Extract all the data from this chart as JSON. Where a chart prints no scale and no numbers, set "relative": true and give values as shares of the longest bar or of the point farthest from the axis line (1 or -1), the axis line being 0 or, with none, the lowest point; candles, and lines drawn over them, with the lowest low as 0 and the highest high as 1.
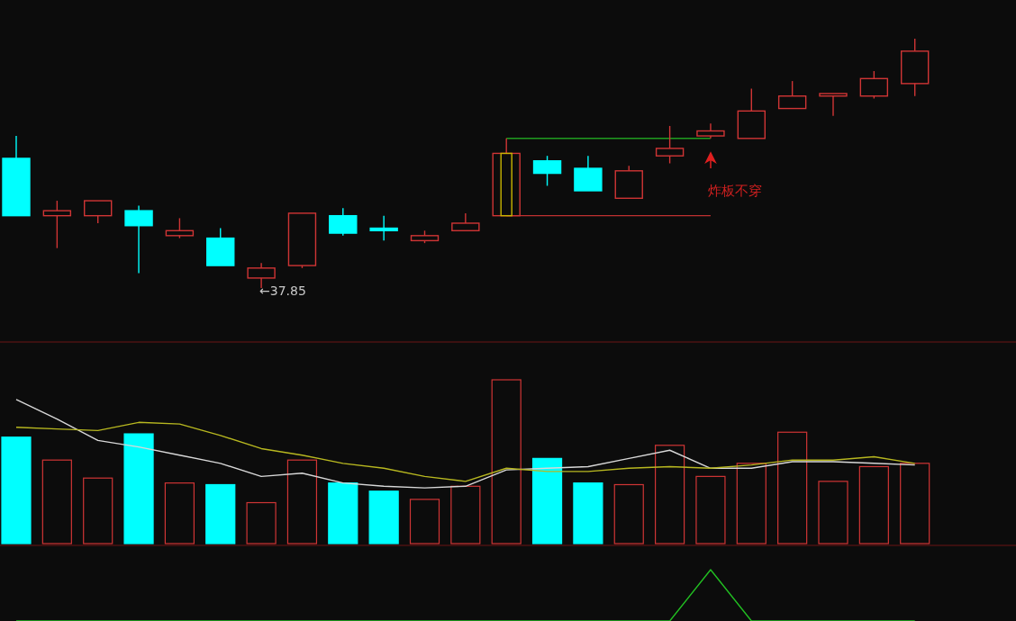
{
  "chart_data": [
    {
      "type": "candlestick",
      "relative": true,
      "categories": [
        null,
        null,
        null,
        null,
        null,
        null,
        null,
        null,
        null,
        null,
        null,
        null,
        null,
        null,
        null,
        null,
        null,
        null,
        null,
        null,
        null,
        null,
        null
      ],
      "ohlc": [
        [
          0.52,
          0.61,
          0.29,
          0.29
        ],
        [
          0.29,
          0.35,
          0.16,
          0.31
        ],
        [
          0.29,
          0.35,
          0.26,
          0.35
        ],
        [
          0.31,
          0.33,
          0.06,
          0.25
        ],
        [
          0.21,
          0.28,
          0.2,
          0.23
        ],
        [
          0.2,
          0.24,
          0.09,
          0.09
        ],
        [
          0.04,
          0.1,
          0,
          0.08
        ],
        [
          0.09,
          0.3,
          0.08,
          0.3
        ],
        [
          0.29,
          0.32,
          0.21,
          0.22
        ],
        [
          0.24,
          0.29,
          0.19,
          0.23
        ],
        [
          0.19,
          0.23,
          0.18,
          0.21
        ],
        [
          0.23,
          0.3,
          0.23,
          0.26
        ],
        [
          0.29,
          0.6,
          0.29,
          0.54
        ],
        [
          0.51,
          0.53,
          0.41,
          0.46
        ],
        [
          0.48,
          0.53,
          0.39,
          0.39
        ],
        [
          0.36,
          0.49,
          0.36,
          0.47
        ],
        [
          0.53,
          0.65,
          0.5,
          0.56
        ],
        [
          0.61,
          0.66,
          0.6,
          0.63
        ],
        [
          0.6,
          0.8,
          0.6,
          0.71
        ],
        [
          0.72,
          0.83,
          0.72,
          0.77
        ],
        [
          0.77,
          0.78,
          0.69,
          0.78
        ],
        [
          0.77,
          0.87,
          0.76,
          0.84
        ],
        [
          0.82,
          1,
          0.77,
          0.95
        ]
      ],
      "colors": [
        "#00ffff",
        "#d03535",
        "#d03535",
        "#00ffff",
        "#d03535",
        "#00ffff",
        "#d03535",
        "#d03535",
        "#00ffff",
        "#00ffff",
        "#d03535",
        "#d03535",
        "#d03535",
        "#00ffff",
        "#00ffff",
        "#d03535",
        "#d03535",
        "#d03535",
        "#d03535",
        "#d03535",
        "#d03535",
        "#d03535",
        "#d03535"
      ],
      "series": [
        {
          "type": "line",
          "color": "#1f9d1f",
          "values": [
            null,
            null,
            null,
            null,
            null,
            null,
            null,
            null,
            null,
            null,
            null,
            null,
            0.6,
            0.6,
            0.6,
            0.6,
            0.6,
            0.6,
            null,
            null,
            null,
            null,
            null
          ]
        },
        {
          "type": "line",
          "color": "#c03030",
          "values": [
            null,
            null,
            null,
            null,
            null,
            null,
            null,
            null,
            null,
            null,
            null,
            null,
            0.29,
            0.29,
            0.29,
            0.29,
            0.29,
            0.29,
            null,
            null,
            null,
            null,
            null
          ]
        }
      ],
      "annotations": [
        "←37.85",
        "炸板不穿"
      ]
    },
    {
      "type": "bar",
      "relative": true,
      "categories": [
        null,
        null,
        null,
        null,
        null,
        null,
        null,
        null,
        null,
        null,
        null,
        null,
        null,
        null,
        null,
        null,
        null,
        null,
        null,
        null,
        null,
        null,
        null
      ],
      "series": [
        {
          "type": "bar",
          "values": [
            0.65,
            0.51,
            0.4,
            0.67,
            0.37,
            0.36,
            0.25,
            0.51,
            0.37,
            0.32,
            0.27,
            0.35,
            1,
            0.52,
            0.37,
            0.36,
            0.6,
            0.41,
            0.49,
            0.68,
            0.38,
            0.47,
            0.49
          ],
          "colors": [
            "#00ffff",
            "#d03535",
            "#d03535",
            "#00ffff",
            "#d03535",
            "#00ffff",
            "#d03535",
            "#d03535",
            "#00ffff",
            "#00ffff",
            "#d03535",
            "#d03535",
            "#d03535",
            "#00ffff",
            "#00ffff",
            "#d03535",
            "#d03535",
            "#d03535",
            "#d03535",
            "#d03535",
            "#d03535",
            "#d03535",
            "#d03535"
          ]
        },
        {
          "type": "line",
          "color": "#d8d8d8",
          "values": [
            0.88,
            0.76,
            0.63,
            0.59,
            0.54,
            0.49,
            0.41,
            0.43,
            0.37,
            0.35,
            0.34,
            0.35,
            0.45,
            0.46,
            0.47,
            0.52,
            0.57,
            0.46,
            0.46,
            0.5,
            0.5,
            0.49,
            0.48
          ]
        },
        {
          "type": "line",
          "color": "#b8b820",
          "values": [
            0.71,
            0.7,
            0.69,
            0.74,
            0.73,
            0.66,
            0.58,
            0.54,
            0.49,
            0.46,
            0.41,
            0.38,
            0.46,
            0.44,
            0.44,
            0.46,
            0.47,
            0.46,
            0.48,
            0.51,
            0.51,
            0.53,
            0.49
          ]
        }
      ]
    },
    {
      "type": "line",
      "relative": true,
      "categories": [
        null,
        null,
        null,
        null,
        null,
        null,
        null,
        null,
        null,
        null,
        null,
        null,
        null,
        null,
        null,
        null,
        null,
        null,
        null,
        null,
        null,
        null,
        null
      ],
      "series": [
        {
          "color": "#22c022",
          "values": [
            0,
            0,
            0,
            0,
            0,
            0,
            0,
            0,
            0,
            0,
            0,
            0,
            0,
            0,
            0,
            0,
            0,
            1,
            0,
            0,
            0,
            0,
            0
          ]
        }
      ]
    }
  ]
}
